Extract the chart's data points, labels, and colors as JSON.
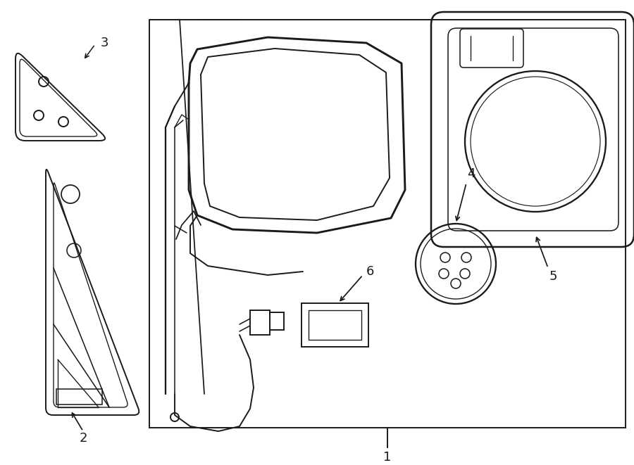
{
  "bg_color": "#ffffff",
  "line_color": "#1a1a1a",
  "lw": 1.4,
  "fig_width": 9.0,
  "fig_height": 6.61
}
